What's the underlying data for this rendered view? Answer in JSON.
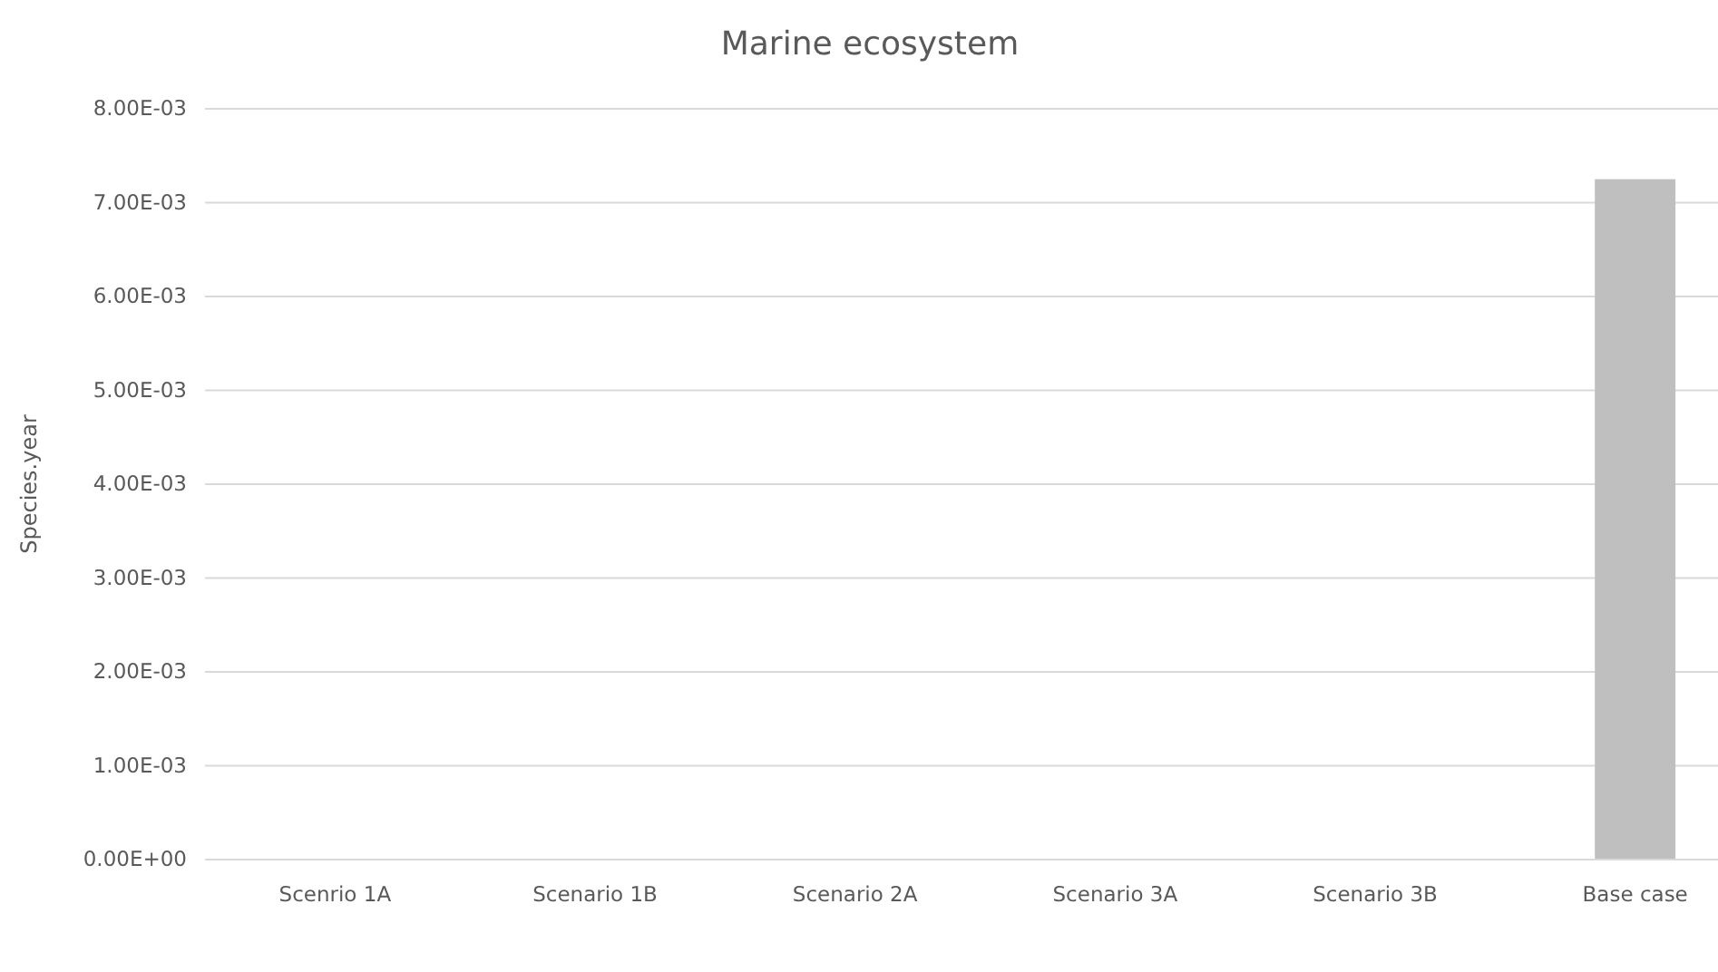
{
  "chart_data": {
    "type": "bar",
    "title": "Marine ecosystem",
    "ylabel": "Species.year",
    "categories": [
      "Scenrio 1A",
      "Scenario 1B",
      "Scenario 2A",
      "Scenario 3A",
      "Scenario 3B",
      "Base case"
    ],
    "values": [
      0,
      0,
      0,
      0,
      0,
      0.00725
    ],
    "color": "#bfbfbf",
    "ylim": [
      0,
      0.008
    ],
    "yticks": [
      {
        "value": 0,
        "label": "0.00E+00"
      },
      {
        "value": 0.001,
        "label": "1.00E-03"
      },
      {
        "value": 0.002,
        "label": "2.00E-03"
      },
      {
        "value": 0.003,
        "label": "3.00E-03"
      },
      {
        "value": 0.004,
        "label": "4.00E-03"
      },
      {
        "value": 0.005,
        "label": "5.00E-03"
      },
      {
        "value": 0.006,
        "label": "6.00E-03"
      },
      {
        "value": 0.007,
        "label": "7.00E-03"
      },
      {
        "value": 0.008,
        "label": "8.00E-03"
      }
    ],
    "grid": "y"
  }
}
